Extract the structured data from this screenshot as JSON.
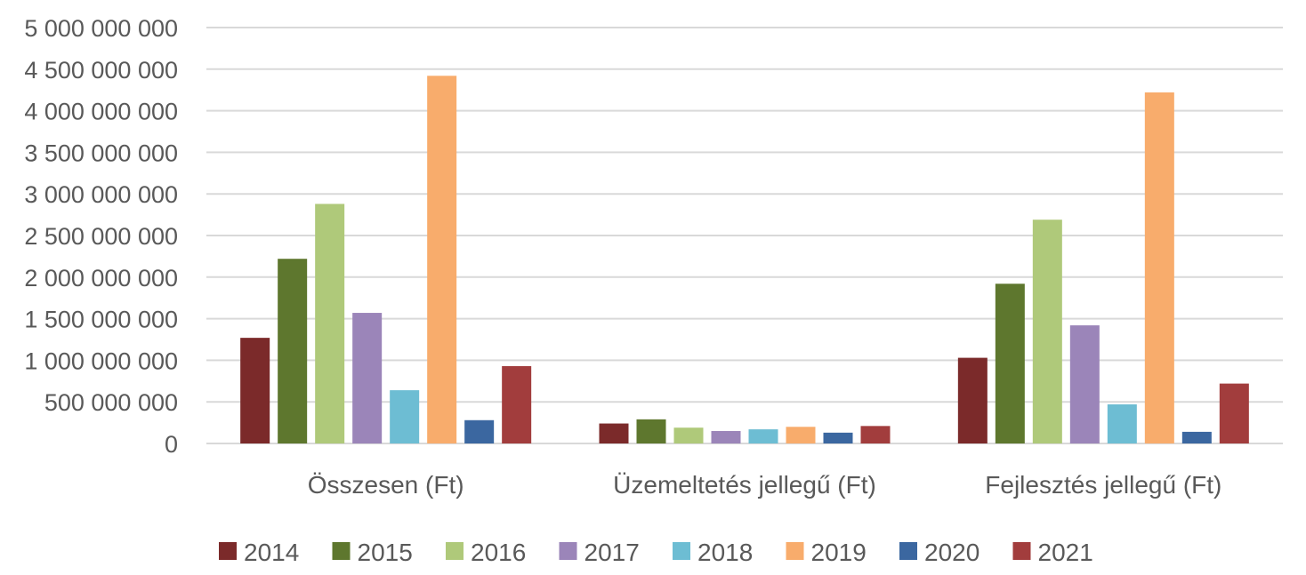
{
  "chart_data": {
    "type": "bar",
    "categories": [
      "Összesen (Ft)",
      "Üzemeltetés jellegű (Ft)",
      "Fejlesztés jellegű (Ft)"
    ],
    "ylim": [
      0,
      5000000000
    ],
    "ytick_values": [
      0,
      500000000,
      1000000000,
      1500000000,
      2000000000,
      2500000000,
      3000000000,
      3500000000,
      4000000000,
      4500000000,
      5000000000
    ],
    "ytick_labels": [
      "0",
      "500 000 000",
      "1 000 000 000",
      "1 500 000 000",
      "2 000 000 000",
      "2 500 000 000",
      "3 000 000 000",
      "3 500 000 000",
      "4 000 000 000",
      "4 500 000 000",
      "5 000 000 000"
    ],
    "grid": true,
    "legend": "bottom",
    "series": [
      {
        "name": "2014",
        "color": "#7b2a2a",
        "values": [
          1270000000,
          240000000,
          1030000000
        ]
      },
      {
        "name": "2015",
        "color": "#5e772e",
        "values": [
          2220000000,
          290000000,
          1920000000
        ]
      },
      {
        "name": "2016",
        "color": "#afc97a",
        "values": [
          2880000000,
          190000000,
          2690000000
        ]
      },
      {
        "name": "2017",
        "color": "#9b85b9",
        "values": [
          1570000000,
          150000000,
          1420000000
        ]
      },
      {
        "name": "2018",
        "color": "#6dbdd3",
        "values": [
          640000000,
          170000000,
          470000000
        ]
      },
      {
        "name": "2019",
        "color": "#f8ac6c",
        "values": [
          4420000000,
          200000000,
          4220000000
        ]
      },
      {
        "name": "2020",
        "color": "#3b67a0",
        "values": [
          280000000,
          130000000,
          140000000
        ]
      },
      {
        "name": "2021",
        "color": "#a23d3d",
        "values": [
          930000000,
          210000000,
          720000000
        ]
      }
    ]
  }
}
